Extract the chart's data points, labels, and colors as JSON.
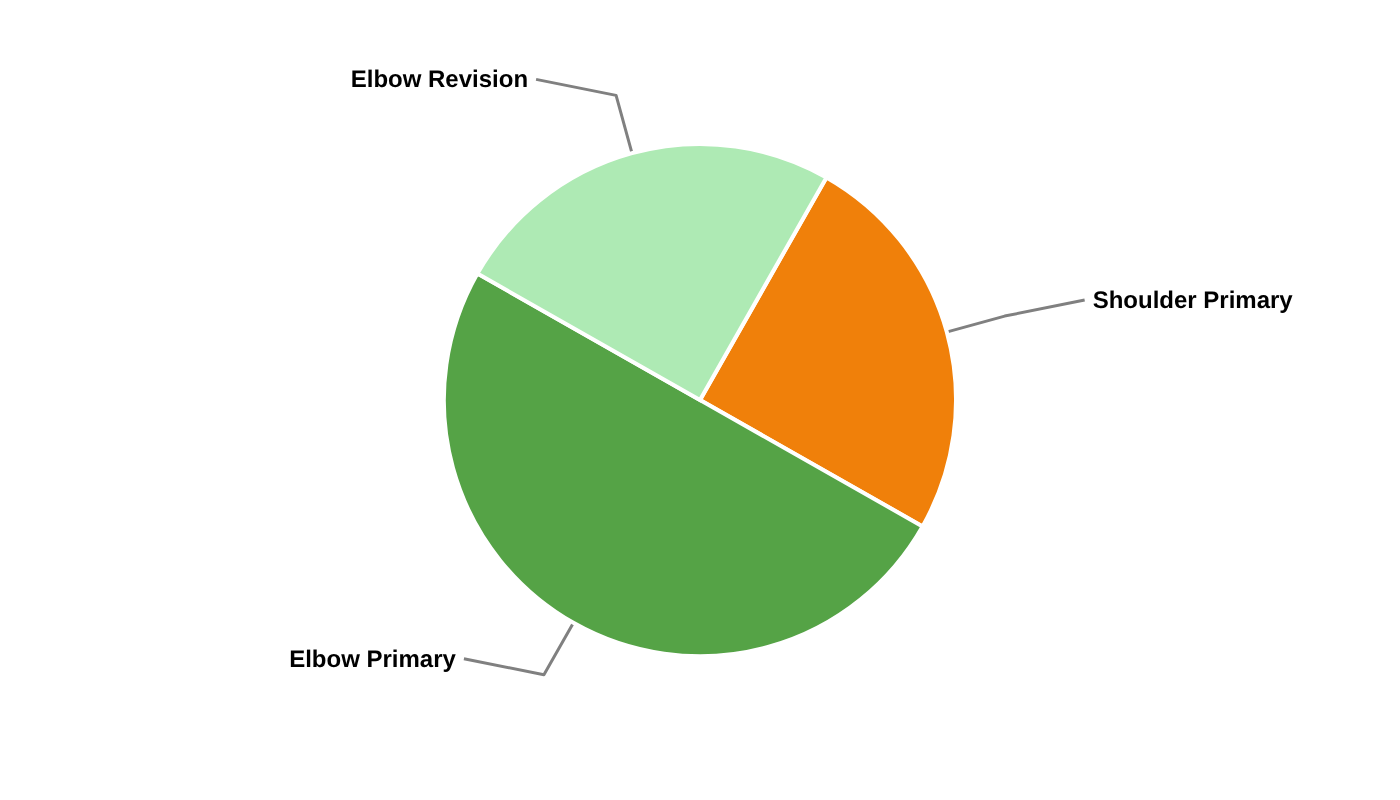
{
  "chart_data": {
    "type": "pie",
    "categories": [
      "Shoulder Primary",
      "Elbow Primary",
      "Elbow Revision"
    ],
    "values": [
      25,
      50,
      25
    ],
    "colors": [
      "#f0800a",
      "#55a346",
      "#aeeab4"
    ]
  }
}
